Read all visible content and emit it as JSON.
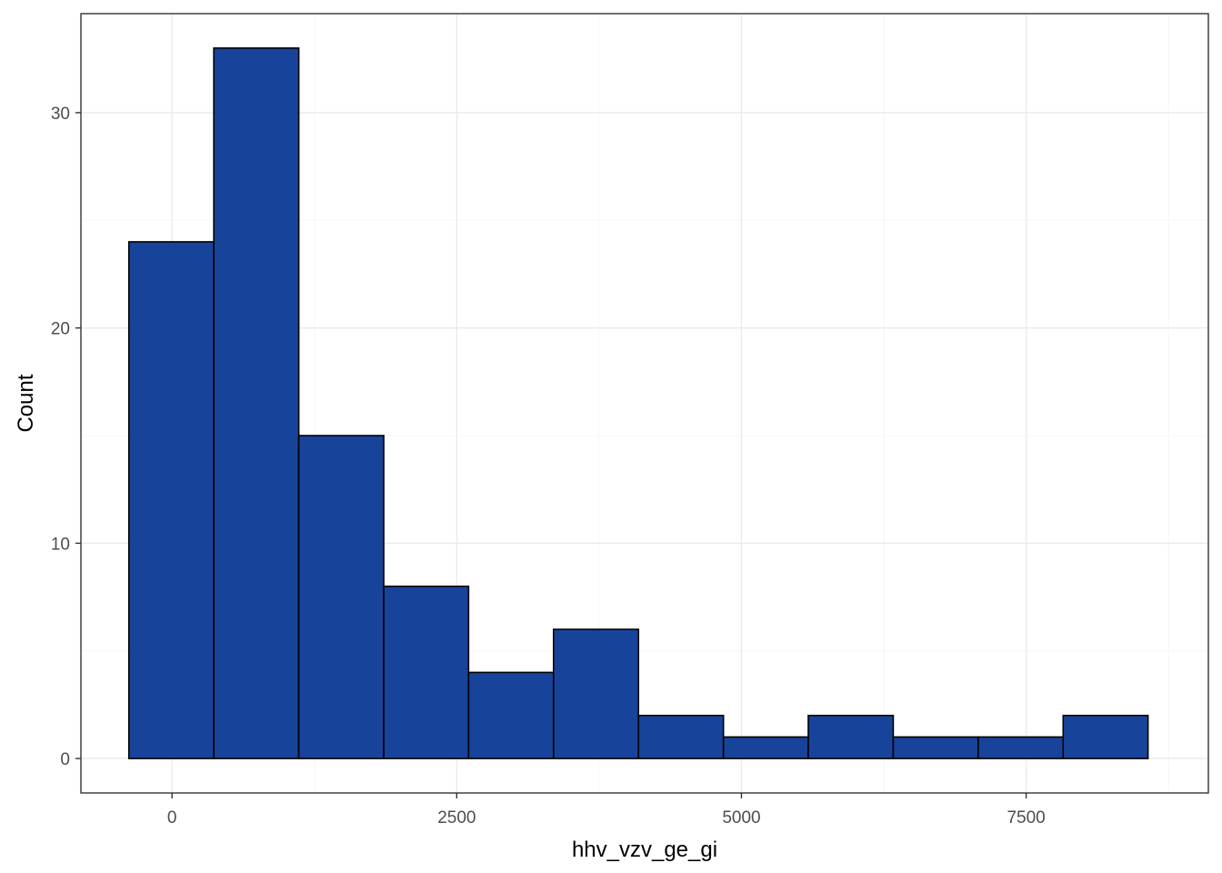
{
  "chart_data": {
    "type": "histogram",
    "xlabel": "hhv_vzv_ge_gi",
    "ylabel": "Count",
    "x_ticks": [
      0,
      2500,
      5000,
      7500
    ],
    "y_ticks": [
      0,
      10,
      20,
      30
    ],
    "xlim": [
      -800,
      9100
    ],
    "ylim": [
      -1.6,
      34.6
    ],
    "bar_color": "#17449A",
    "bins": [
      {
        "x0": -379,
        "x1": 367,
        "count": 24
      },
      {
        "x0": 367,
        "x1": 1113,
        "count": 33
      },
      {
        "x0": 1113,
        "x1": 1859,
        "count": 15
      },
      {
        "x0": 1859,
        "x1": 2604,
        "count": 8
      },
      {
        "x0": 2604,
        "x1": 3350,
        "count": 4
      },
      {
        "x0": 3350,
        "x1": 4096,
        "count": 6
      },
      {
        "x0": 4096,
        "x1": 4842,
        "count": 2
      },
      {
        "x0": 4842,
        "x1": 5587,
        "count": 1
      },
      {
        "x0": 5587,
        "x1": 6333,
        "count": 2
      },
      {
        "x0": 6333,
        "x1": 7079,
        "count": 1
      },
      {
        "x0": 7079,
        "x1": 7825,
        "count": 1
      },
      {
        "x0": 7825,
        "x1": 8570,
        "count": 2
      }
    ]
  }
}
